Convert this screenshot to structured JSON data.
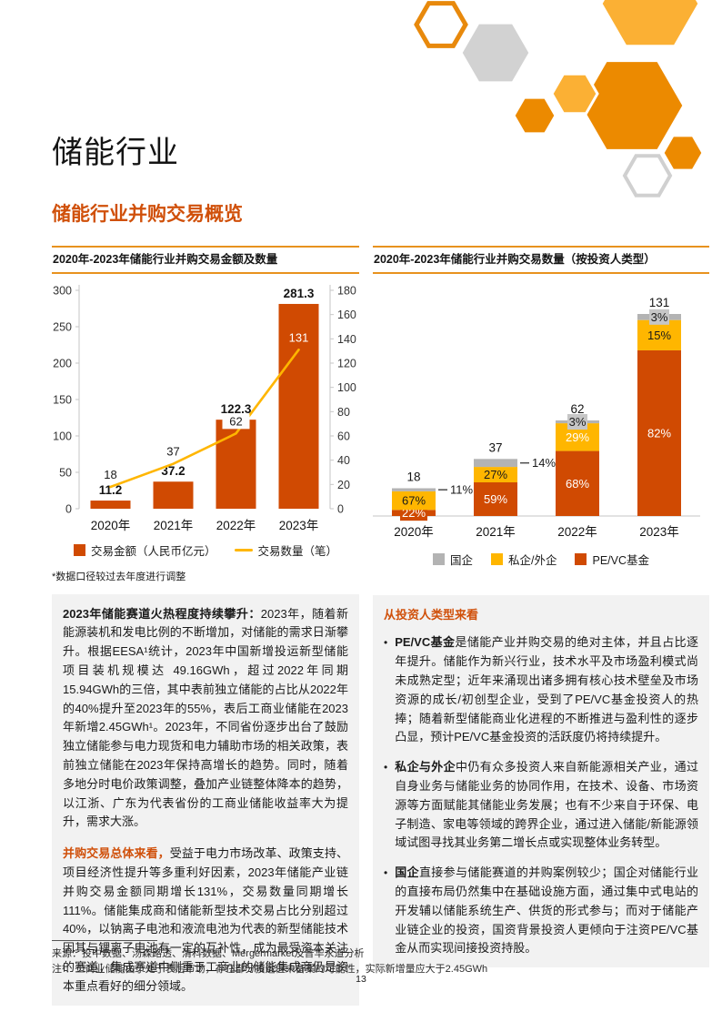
{
  "header": {
    "title": "储能行业",
    "section_title": "储能行业并购交易概览"
  },
  "colors": {
    "accent_dark_orange": "#D04A02",
    "accent_amber": "#FFB600",
    "accent_gray": "#B3B3B3",
    "title_rule_orange": "#E8921E",
    "text_box_background": "#F2F2F2"
  },
  "left_column": {
    "note": "*数据口径较过去年度进行调整",
    "paragraphs": [
      {
        "lead": "2023年储能赛道火热程度持续攀升：",
        "lead_style": "black",
        "text": "2023年，随着新能源装机和发电比例的不断增加，对储能的需求日渐攀升。根据EESA¹统计，2023年中国新增投运新型储能项目装机规模达 49.16GWh，超过2022年同期15.94GWh的三倍，其中表前独立储能的占比从2022年的40%提升至2023年的55%，表后工商业储能在2023年新增2.45GWh¹。2023年，不同省份逐步出台了鼓励独立储能参与电力现货和电力辅助市场的相关政策，表前独立储能在2023年保持高增长的趋势。同时，随着多地分时电价政策调整，叠加产业链整体降本的趋势，以江浙、广东为代表省份的工商业储能收益率大为提升，需求大涨。"
      },
      {
        "lead": "并购交易总体来看，",
        "lead_style": "orange",
        "text": "受益于电力市场改革、政策支持、项目经济性提升等多重利好因素，2023年储能产业链并购交易金额同期增长131%，交易数量同期增长111%。储能集成商和储能新型技术交易占比分别超过40%，以钠离子电池和液流电池为代表的新型储能技术因其与锂离子电池有一定的互补性，成为最受资本关注的赛道；集成赛道中侧重于工商业的储能集成商仍是资本重点看好的细分领域。"
      }
    ]
  },
  "right_column": {
    "heading": "从投资人类型来看",
    "bullets": [
      {
        "lead": "PE/VC基金",
        "text": "是储能产业并购交易的绝对主体，并且占比逐年提升。储能作为新兴行业，技术水平及市场盈利模式尚未成熟定型；近年来涌现出诸多拥有核心技术壁垒及市场资源的成长/初创型企业，受到了PE/VC基金投资人的热捧；随着新型储能商业化进程的不断推进与盈利性的逐步凸显，预计PE/VC基金投资的活跃度仍将持续提升。"
      },
      {
        "lead": "私企与外企",
        "text": "中仍有众多投资人来自新能源相关产业，通过自身业务与储能业务的协同作用，在技术、设备、市场资源等方面赋能其储能业务发展；也有不少来自于环保、电子制造、家电等领域的跨界企业，通过进入储能/新能源领域试图寻找其业务第二增长点或实现整体业务转型。"
      },
      {
        "lead": "国企",
        "text": "直接参与储能赛道的并购案例较少；国企对储能行业的直接布局仍然集中在基础设施方面，通过集中式电站的开发辅以储能系统生产、供货的形式参与；而对于储能产业链企业的投资，国资背景投资人更倾向于注资PE/VC基金从而实现间接投资持股。"
      }
    ]
  },
  "footer": {
    "source": "来源：投中数据、汤森路透、清科数据、Mergermarket及普华永道分析",
    "note": "注¹：工商业储能由于处于表后市场，存在部分投运但未备案的可能性，实际新增量应大于2.45GWh",
    "page_number": "13"
  },
  "chart_data": [
    {
      "type": "bar",
      "subtype": "combo_bar_line",
      "title": "2020年-2023年储能行业并购交易金额及数量",
      "categories": [
        "2020年",
        "2021年",
        "2022年",
        "2023年"
      ],
      "series": [
        {
          "name": "交易金额（人民币亿元）",
          "kind": "bar",
          "axis": "left",
          "color": "#D04A02",
          "values": [
            11.2,
            37.2,
            122.3,
            281.3
          ]
        },
        {
          "name": "交易数量（笔）",
          "kind": "line",
          "axis": "right",
          "color": "#FFB600",
          "values": [
            18,
            37,
            62,
            131
          ],
          "label_color": [
            "#1A1A1A",
            "#1A1A1A",
            "#1A1A1A",
            "#FFFFFF"
          ],
          "label_chip": [
            false,
            false,
            true,
            false
          ]
        }
      ],
      "left_axis": {
        "min": 0,
        "max": 300,
        "step": 50,
        "ticks": [
          0,
          50,
          100,
          150,
          200,
          250,
          300
        ]
      },
      "right_axis": {
        "min": 0,
        "max": 180,
        "step": 20,
        "ticks": [
          0,
          20,
          40,
          60,
          80,
          100,
          120,
          140,
          160,
          180
        ]
      },
      "grid": false,
      "legend_position": "bottom"
    },
    {
      "type": "bar",
      "subtype": "stacked_percent_bar",
      "title": "2020年-2023年储能行业并购交易数量（按投资人类型）",
      "categories": [
        "2020年",
        "2021年",
        "2022年",
        "2023年"
      ],
      "totals": [
        18,
        37,
        62,
        131
      ],
      "unit": "%",
      "series": [
        {
          "name": "PE/VC基金",
          "color": "#D04A02",
          "values_pct": [
            22,
            59,
            68,
            82
          ],
          "label_color": [
            "#FFFFFF",
            "#FFFFFF",
            "#FFFFFF",
            "#FFFFFF"
          ],
          "label_mode": [
            "chip",
            "inside",
            "inside",
            "inside"
          ],
          "chip_color": "#D04A02"
        },
        {
          "name": "私企/外企",
          "color": "#FFB600",
          "values_pct": [
            67,
            27,
            29,
            15
          ],
          "label_color": [
            "#1A1A1A",
            "#1A1A1A",
            "#FFFFFF",
            "#1A1A1A"
          ],
          "label_mode": [
            "inside",
            "inside",
            "inside",
            "inside"
          ]
        },
        {
          "name": "国企",
          "color": "#B3B3B3",
          "values_pct": [
            11,
            14,
            3,
            3
          ],
          "label_color": [
            "#1A1A1A",
            "#1A1A1A",
            "#1A1A1A",
            "#1A1A1A"
          ],
          "label_mode": [
            "callout",
            "callout",
            "chip",
            "chip"
          ],
          "chip_color": "#C6C6C6"
        }
      ],
      "legend_order": [
        "国企",
        "私企/外企",
        "PE/VC基金"
      ],
      "grid": false,
      "legend_position": "bottom"
    }
  ]
}
